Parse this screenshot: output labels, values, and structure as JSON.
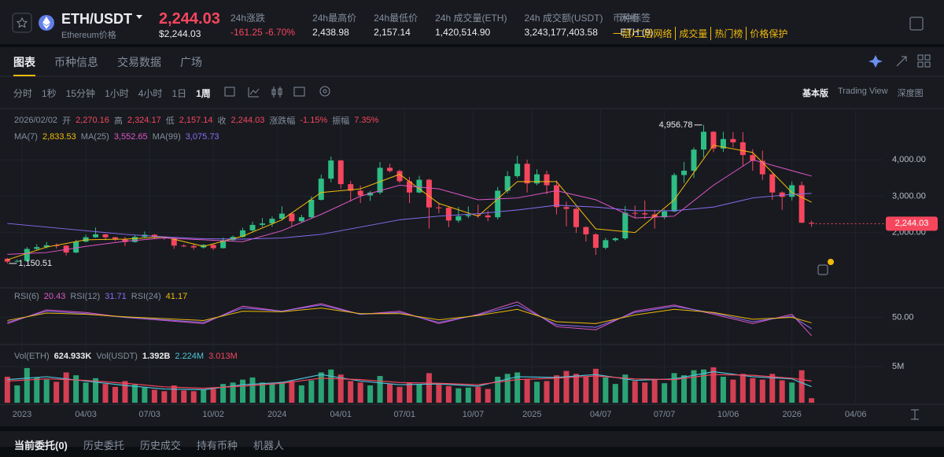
{
  "header": {
    "symbol": "ETH/USDT",
    "subtitle": "Ethereum价格",
    "price": "2,244.03",
    "price_usd": "$2,244.03",
    "stats": [
      {
        "label": "24h涨跌",
        "value": "-161.25 -6.70%"
      },
      {
        "label": "24h最高价",
        "value": "2,438.98"
      },
      {
        "label": "24h最低价",
        "value": "2,157.14"
      },
      {
        "label": "24h 成交量(ETH)",
        "value": "1,420,514.90"
      },
      {
        "label": "24h 成交额(USDT)",
        "value": "3,243,177,403.58"
      },
      {
        "label": "网络",
        "value": "ETH (9)"
      }
    ],
    "tags": {
      "label": "币种标签",
      "items": [
        "一层/二层网络",
        "成交量",
        "热门榜",
        "价格保护"
      ]
    }
  },
  "tabs": [
    "图表",
    "币种信息",
    "交易数据",
    "广场"
  ],
  "intervals": [
    "分时",
    "1秒",
    "15分钟",
    "1小时",
    "4小时",
    "1日",
    "1周"
  ],
  "views": [
    "基本版",
    "Trading View",
    "深度图"
  ],
  "bottom_tabs": [
    "当前委托(0)",
    "历史委托",
    "历史成交",
    "持有币种",
    "机器人"
  ],
  "chart_data": {
    "type": "candlestick",
    "date": "2026/02/02",
    "ohlc_legend": [
      {
        "label": "开",
        "value": "2,270.16"
      },
      {
        "label": "高",
        "value": "2,324.17"
      },
      {
        "label": "低",
        "value": "2,157.14"
      },
      {
        "label": "收",
        "value": "2,244.03"
      },
      {
        "label": "涨跌幅",
        "value": "-1.15%"
      },
      {
        "label": "振幅",
        "value": "7.35%"
      }
    ],
    "up_color": "#2ebd85",
    "down_color": "#f6465d",
    "xlim": [
      -4.5,
      175.5
    ],
    "xticks": [
      {
        "value": 0,
        "label": "2023"
      },
      {
        "value": 13,
        "label": "04/03"
      },
      {
        "value": 26,
        "label": "07/03"
      },
      {
        "value": 39,
        "label": "10/02"
      },
      {
        "value": 52,
        "label": "2024"
      },
      {
        "value": 65,
        "label": "04/01"
      },
      {
        "value": 78,
        "label": "07/01"
      },
      {
        "value": 92,
        "label": "10/07"
      },
      {
        "value": 104,
        "label": "2025"
      },
      {
        "value": 118,
        "label": "04/07"
      },
      {
        "value": 131,
        "label": "07/07"
      },
      {
        "value": 144,
        "label": "10/06"
      },
      {
        "value": 157,
        "label": "2026"
      },
      {
        "value": 170,
        "label": "04/06"
      }
    ],
    "ylim": [
      500,
      5300
    ],
    "yticks": [
      {
        "value": 2000,
        "label": "2,000.00"
      },
      {
        "value": 3000,
        "label": "3,000.00"
      },
      {
        "value": 4000,
        "label": "4,000.00"
      }
    ],
    "x": [
      -3,
      -1,
      1,
      3,
      5,
      7,
      9,
      11,
      13,
      15,
      17,
      19,
      21,
      23,
      25,
      27,
      29,
      31,
      33,
      35,
      37,
      39,
      41,
      43,
      45,
      47,
      49,
      51,
      53,
      55,
      57,
      59,
      61,
      63,
      65,
      67,
      69,
      71,
      73,
      75,
      77,
      79,
      81,
      83,
      85,
      87,
      89,
      91,
      93,
      95,
      97,
      99,
      101,
      103,
      105,
      107,
      109,
      111,
      113,
      115,
      117,
      119,
      121,
      123,
      125,
      127,
      129,
      131,
      133,
      135,
      137,
      139,
      141,
      143,
      145,
      147,
      149,
      151,
      153,
      155,
      157,
      159,
      161
    ],
    "open": [
      1280,
      1200,
      1220,
      1550,
      1600,
      1650,
      1640,
      1450,
      1750,
      1870,
      1950,
      1870,
      1810,
      1740,
      1880,
      1940,
      1880,
      1850,
      1640,
      1630,
      1590,
      1660,
      1570,
      1790,
      1880,
      2060,
      2210,
      2250,
      2380,
      2520,
      2310,
      2420,
      2900,
      3480,
      3980,
      3330,
      3150,
      3020,
      3100,
      3780,
      3690,
      3410,
      3100,
      3450,
      2690,
      2680,
      2330,
      2450,
      2480,
      2470,
      2420,
      3150,
      3550,
      3890,
      3350,
      3600,
      3300,
      2700,
      2650,
      2150,
      1950,
      1580,
      1790,
      1840,
      2540,
      2530,
      2500,
      2420,
      2580,
      3580,
      3700,
      4280,
      4770,
      4310,
      4570,
      4480,
      4130,
      3970,
      3600,
      3100,
      2980,
      3300,
      2270.16
    ],
    "high": [
      1300,
      1260,
      1600,
      1680,
      1740,
      1700,
      1660,
      1800,
      1940,
      2140,
      1960,
      1880,
      1880,
      1930,
      2030,
      1960,
      1880,
      1860,
      1680,
      1680,
      1680,
      1680,
      1860,
      1920,
      2130,
      2300,
      2400,
      2440,
      2720,
      2560,
      2490,
      2990,
      3590,
      4090,
      4000,
      3420,
      3290,
      3140,
      3940,
      3890,
      3730,
      3530,
      3560,
      3480,
      2820,
      2720,
      2700,
      2720,
      2770,
      2600,
      3250,
      3690,
      4110,
      4000,
      3740,
      3700,
      3430,
      2850,
      2700,
      2170,
      1980,
      1850,
      1870,
      2730,
      2740,
      2880,
      2620,
      2630,
      3640,
      3940,
      4340,
      4956.78,
      4790,
      4770,
      4760,
      4760,
      4290,
      4250,
      3660,
      3130,
      3400,
      3400,
      2324.17
    ],
    "low": [
      1150.51,
      1180,
      1200,
      1520,
      1560,
      1560,
      1370,
      1430,
      1730,
      1850,
      1790,
      1770,
      1630,
      1720,
      1850,
      1840,
      1800,
      1550,
      1600,
      1530,
      1560,
      1520,
      1560,
      1780,
      1860,
      2020,
      2150,
      2160,
      2330,
      2170,
      2260,
      2390,
      2880,
      3380,
      3200,
      2850,
      2810,
      2870,
      3050,
      3650,
      3360,
      2810,
      3080,
      2110,
      2530,
      2150,
      2270,
      2390,
      2400,
      2310,
      2360,
      3080,
      3500,
      3100,
      3300,
      3050,
      2500,
      2170,
      1990,
      1750,
      1385,
      1540,
      1750,
      1800,
      2410,
      2370,
      2110,
      2370,
      2560,
      3360,
      3500,
      4060,
      4210,
      4220,
      4340,
      3820,
      3700,
      3450,
      2900,
      2620,
      2880,
      2260,
      2157.14
    ],
    "close": [
      1200,
      1220,
      1550,
      1600,
      1650,
      1640,
      1450,
      1750,
      1870,
      1950,
      1870,
      1810,
      1740,
      1880,
      1940,
      1880,
      1850,
      1640,
      1630,
      1590,
      1660,
      1570,
      1790,
      1880,
      2060,
      2210,
      2250,
      2380,
      2520,
      2310,
      2420,
      2900,
      3480,
      3980,
      3330,
      3150,
      3020,
      3100,
      3780,
      3690,
      3410,
      3100,
      3450,
      2690,
      2680,
      2330,
      2450,
      2480,
      2470,
      2420,
      3150,
      3550,
      3890,
      3350,
      3600,
      3300,
      2700,
      2650,
      2150,
      1950,
      1580,
      1790,
      1840,
      2540,
      2530,
      2500,
      2420,
      2580,
      3580,
      3700,
      4280,
      4770,
      4310,
      4570,
      4480,
      4130,
      3970,
      3600,
      3100,
      2980,
      3300,
      2270.16,
      2244.03
    ],
    "ma_series": [
      {
        "name": "MA(7)",
        "color": "#f0b90b",
        "legend_value": "2,833.53",
        "x": [
          -3,
          5,
          13,
          21,
          29,
          37,
          45,
          53,
          61,
          69,
          77,
          85,
          93,
          101,
          109,
          117,
          125,
          133,
          141,
          149,
          157,
          161
        ],
        "values": [
          1250,
          1600,
          1800,
          1820,
          1880,
          1620,
          1900,
          2350,
          3100,
          3200,
          3600,
          2800,
          2450,
          3400,
          3400,
          2100,
          2000,
          2900,
          4400,
          4200,
          3100,
          2833.53
        ]
      },
      {
        "name": "MA(25)",
        "color": "#e056c8",
        "legend_value": "3,552.65",
        "x": [
          -3,
          5,
          13,
          21,
          29,
          37,
          45,
          53,
          61,
          69,
          77,
          85,
          93,
          101,
          109,
          117,
          125,
          133,
          141,
          149,
          157,
          161
        ],
        "values": [
          1400,
          1450,
          1620,
          1760,
          1850,
          1800,
          1750,
          2050,
          2500,
          3000,
          3300,
          3200,
          2900,
          2950,
          3150,
          2900,
          2400,
          2450,
          3300,
          4000,
          3700,
          3552.65
        ]
      },
      {
        "name": "MA(99)",
        "color": "#8c6df2",
        "legend_value": "3,075.73",
        "x": [
          -3,
          5,
          13,
          21,
          29,
          37,
          45,
          53,
          61,
          69,
          77,
          85,
          93,
          101,
          109,
          117,
          125,
          133,
          141,
          149,
          157,
          161
        ],
        "values": [
          2250,
          2150,
          2050,
          1950,
          1880,
          1830,
          1820,
          1850,
          1950,
          2150,
          2350,
          2450,
          2520,
          2620,
          2750,
          2700,
          2600,
          2600,
          2700,
          2950,
          3050,
          3075.73
        ]
      }
    ],
    "price_tag": {
      "value": 2244.03,
      "label": "2,244.03"
    },
    "annotations": [
      {
        "x": 139,
        "value": 4956.78,
        "label": "4,956.78",
        "side": "left"
      },
      {
        "x": -3,
        "value": 1150.51,
        "label": "1,150.51",
        "side": "right"
      }
    ],
    "rsi": {
      "ylim": [
        10,
        90
      ],
      "yticks": [
        {
          "value": 50,
          "label": "50.00"
        }
      ],
      "series": [
        {
          "name": "RSI(6)",
          "color": "#e056c8",
          "legend_value": "20.43",
          "x": [
            -3,
            5,
            13,
            21,
            29,
            37,
            45,
            53,
            61,
            69,
            77,
            85,
            93,
            101,
            109,
            117,
            125,
            133,
            141,
            149,
            157,
            161
          ],
          "values": [
            40,
            62,
            58,
            50,
            45,
            40,
            68,
            60,
            72,
            55,
            60,
            40,
            55,
            75,
            35,
            30,
            60,
            70,
            55,
            40,
            55,
            20.43
          ]
        },
        {
          "name": "RSI(12)",
          "color": "#8c6df2",
          "legend_value": "31.71",
          "x": [
            -3,
            5,
            13,
            21,
            29,
            37,
            45,
            53,
            61,
            69,
            77,
            85,
            93,
            101,
            109,
            117,
            125,
            133,
            141,
            149,
            157,
            161
          ],
          "values": [
            42,
            60,
            56,
            50,
            46,
            42,
            65,
            60,
            70,
            55,
            58,
            42,
            54,
            70,
            38,
            34,
            58,
            68,
            57,
            43,
            52,
            31.71
          ]
        },
        {
          "name": "RSI(24)",
          "color": "#f0b90b",
          "legend_value": "41.17",
          "x": [
            -3,
            5,
            13,
            21,
            29,
            37,
            45,
            53,
            61,
            69,
            77,
            85,
            93,
            101,
            109,
            117,
            125,
            133,
            141,
            149,
            157,
            161
          ],
          "values": [
            45,
            57,
            55,
            51,
            48,
            45,
            60,
            59,
            65,
            56,
            56,
            46,
            53,
            63,
            43,
            40,
            54,
            63,
            58,
            47,
            50,
            41.17
          ]
        }
      ]
    },
    "volume": {
      "ylim": [
        0,
        7300000
      ],
      "yticks": [
        {
          "value": 5000000,
          "label": "5M"
        }
      ],
      "legend": [
        {
          "name": "Vol(ETH)",
          "value": "624.933K"
        },
        {
          "name": "Vol(USDT)",
          "value": "1.392B"
        }
      ],
      "values": [
        3600000,
        2400000,
        4800000,
        3500000,
        3200000,
        2900000,
        4200000,
        3800000,
        2800000,
        3400000,
        2600000,
        2200000,
        3000000,
        2500000,
        2100000,
        1800000,
        1600000,
        2400000,
        1700000,
        1600000,
        1800000,
        1900000,
        2600000,
        2800000,
        3200000,
        3500000,
        2800000,
        2600000,
        2900000,
        3000000,
        2400000,
        3100000,
        4200000,
        4600000,
        3900000,
        3000000,
        2800000,
        2400000,
        3700000,
        2600000,
        2200000,
        2800000,
        2600000,
        4100000,
        2500000,
        2300000,
        2000000,
        2100000,
        2200000,
        1900000,
        3600000,
        4000000,
        4200000,
        3300000,
        2900000,
        3000000,
        3800000,
        4400000,
        4000000,
        3600000,
        4700000,
        3500000,
        2600000,
        3900000,
        3000000,
        2800000,
        3200000,
        2700000,
        4100000,
        3800000,
        4500000,
        4600000,
        4900000,
        3600000,
        3200000,
        4000000,
        3400000,
        3200000,
        4000000,
        3100000,
        2800000,
        4500000,
        624933
      ],
      "ma_series": [
        {
          "color": "#4fc3d9",
          "legend_value": "2.224M",
          "x": [
            -3,
            5,
            13,
            21,
            29,
            37,
            45,
            53,
            61,
            69,
            77,
            85,
            93,
            101,
            109,
            117,
            125,
            133,
            141,
            149,
            157,
            161
          ],
          "values": [
            3200000,
            3600000,
            3000000,
            2400000,
            1900000,
            1800000,
            2500000,
            2800000,
            3900000,
            3000000,
            2500000,
            2600000,
            2300000,
            3600000,
            3500000,
            3900000,
            3100000,
            3300000,
            4300000,
            3600000,
            3300000,
            2224000
          ]
        },
        {
          "color": "#f6465d",
          "legend_value": "3.013M",
          "x": [
            -3,
            5,
            13,
            21,
            29,
            37,
            45,
            53,
            61,
            69,
            77,
            85,
            93,
            101,
            109,
            117,
            125,
            133,
            141,
            149,
            157,
            161
          ],
          "values": [
            3000000,
            3300000,
            3100000,
            2700000,
            2200000,
            2000000,
            2300000,
            2700000,
            3400000,
            3200000,
            2800000,
            2700000,
            2500000,
            3200000,
            3400000,
            3700000,
            3300000,
            3200000,
            3900000,
            3800000,
            3400000,
            3013000
          ]
        }
      ]
    }
  }
}
